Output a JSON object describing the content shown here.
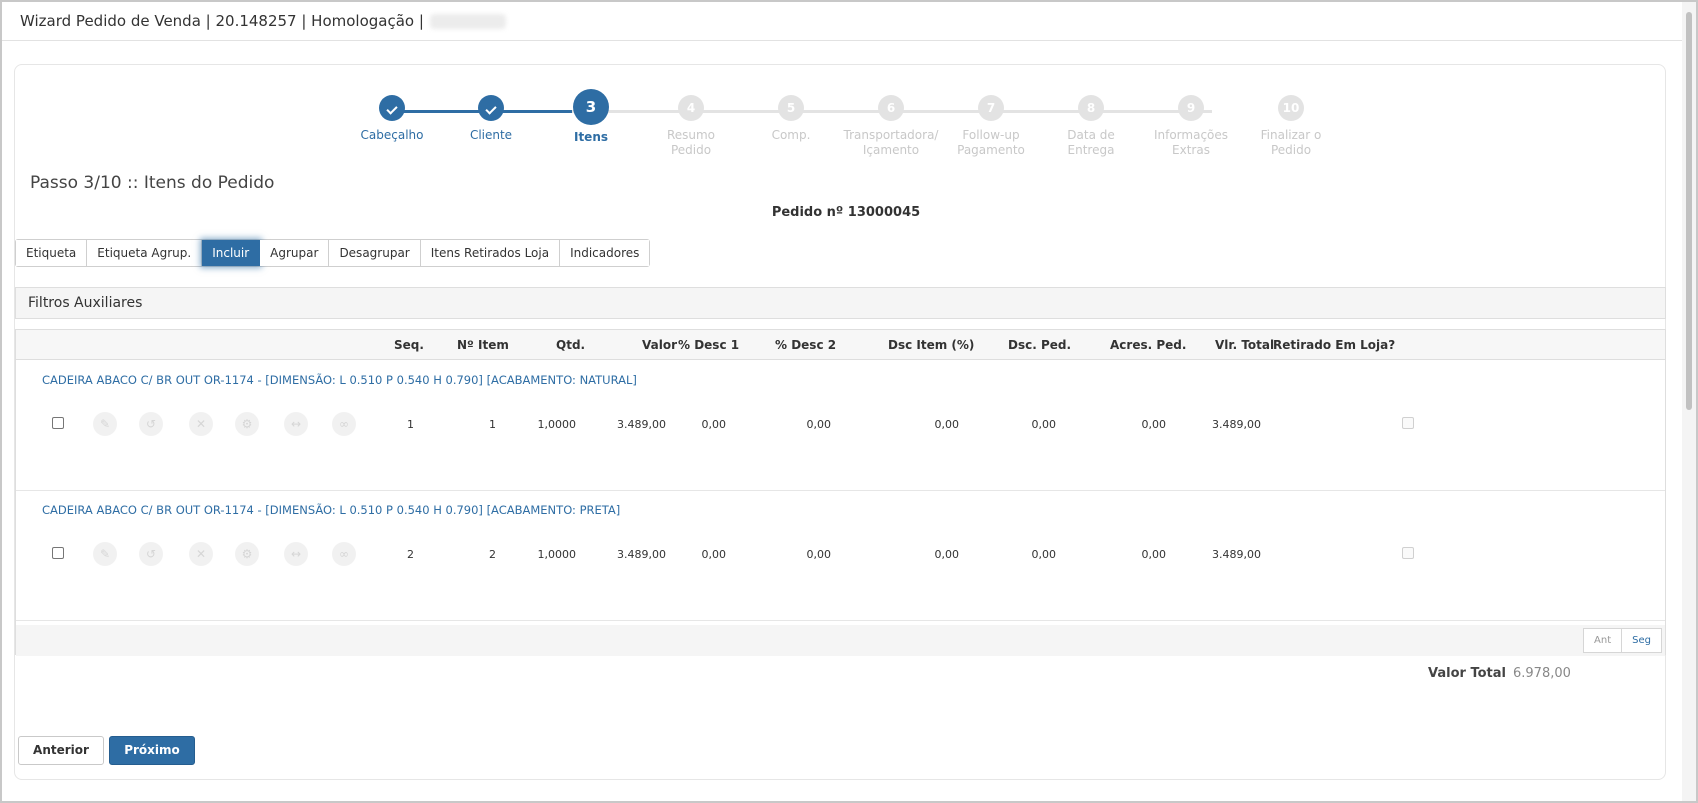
{
  "window": {
    "title": "Wizard Pedido de Venda | 20.148257 | Homologação |"
  },
  "stepper": {
    "steps": [
      {
        "number": "1",
        "label": "Cabeçalho",
        "state": "done"
      },
      {
        "number": "2",
        "label": "Cliente",
        "state": "done"
      },
      {
        "number": "3",
        "label": "Itens",
        "state": "active"
      },
      {
        "number": "4",
        "label": "Resumo\nPedido",
        "state": "pending"
      },
      {
        "number": "5",
        "label": "Comp.",
        "state": "pending"
      },
      {
        "number": "6",
        "label": "Transportadora/\nIçamento",
        "state": "pending"
      },
      {
        "number": "7",
        "label": "Follow-up\nPagamento",
        "state": "pending"
      },
      {
        "number": "8",
        "label": "Data de\nEntrega",
        "state": "pending"
      },
      {
        "number": "9",
        "label": "Informações\nExtras",
        "state": "pending"
      },
      {
        "number": "10",
        "label": "Finalizar o\nPedido",
        "state": "pending"
      }
    ]
  },
  "page": {
    "step_title": "Passo 3/10 :: Itens do Pedido",
    "order_number": "Pedido nº 13000045"
  },
  "tabs": [
    {
      "label": "Etiqueta",
      "active": false
    },
    {
      "label": "Etiqueta Agrup.",
      "active": false
    },
    {
      "label": "Incluir",
      "active": true
    },
    {
      "label": "Agrupar",
      "active": false
    },
    {
      "label": "Desagrupar",
      "active": false
    },
    {
      "label": "Itens Retirados Loja",
      "active": false
    },
    {
      "label": "Indicadores",
      "active": false
    }
  ],
  "filters": {
    "title": "Filtros Auxiliares"
  },
  "grid": {
    "columns": {
      "seq": "Seq.",
      "item_no": "Nº Item",
      "qty": "Qtd.",
      "value": "Valor",
      "disc1": "% Desc 1",
      "disc2": "% Desc 2",
      "item_disc": "Dsc Item (%)",
      "order_disc": "Dsc. Ped.",
      "order_add": "Acres. Ped.",
      "total": "Vlr. Total",
      "picked_up": "Retirado Em Loja?"
    },
    "rows": [
      {
        "description": "CADEIRA ABACO C/ BR OUT OR-1174 - [DIMENSÃO: L 0.510 P 0.540 H 0.790] [ACABAMENTO: NATURAL]",
        "seq": "1",
        "item_no": "1",
        "qty": "1,0000",
        "value": "3.489,00",
        "disc1": "0,00",
        "disc2": "0,00",
        "item_disc": "0,00",
        "order_disc": "0,00",
        "order_add": "0,00",
        "total": "3.489,00"
      },
      {
        "description": "CADEIRA ABACO C/ BR OUT OR-1174 - [DIMENSÃO: L 0.510 P 0.540 H 0.790] [ACABAMENTO: PRETA]",
        "seq": "2",
        "item_no": "2",
        "qty": "1,0000",
        "value": "3.489,00",
        "disc1": "0,00",
        "disc2": "0,00",
        "item_disc": "0,00",
        "order_disc": "0,00",
        "order_add": "0,00",
        "total": "3.489,00"
      }
    ],
    "row_actions": [
      "edit-icon",
      "history-icon",
      "remove-icon",
      "gear-icon",
      "arrows-horizontal-icon",
      "link-icon"
    ],
    "pager": {
      "prev": "Ant",
      "next": "Seg"
    }
  },
  "summary": {
    "total_label": "Valor Total",
    "total_value": "6.978,00"
  },
  "footer": {
    "prev_label": "Anterior",
    "next_label": "Próximo"
  },
  "colors": {
    "primary": "#2e6da4",
    "pending": "#e3e3e3"
  }
}
